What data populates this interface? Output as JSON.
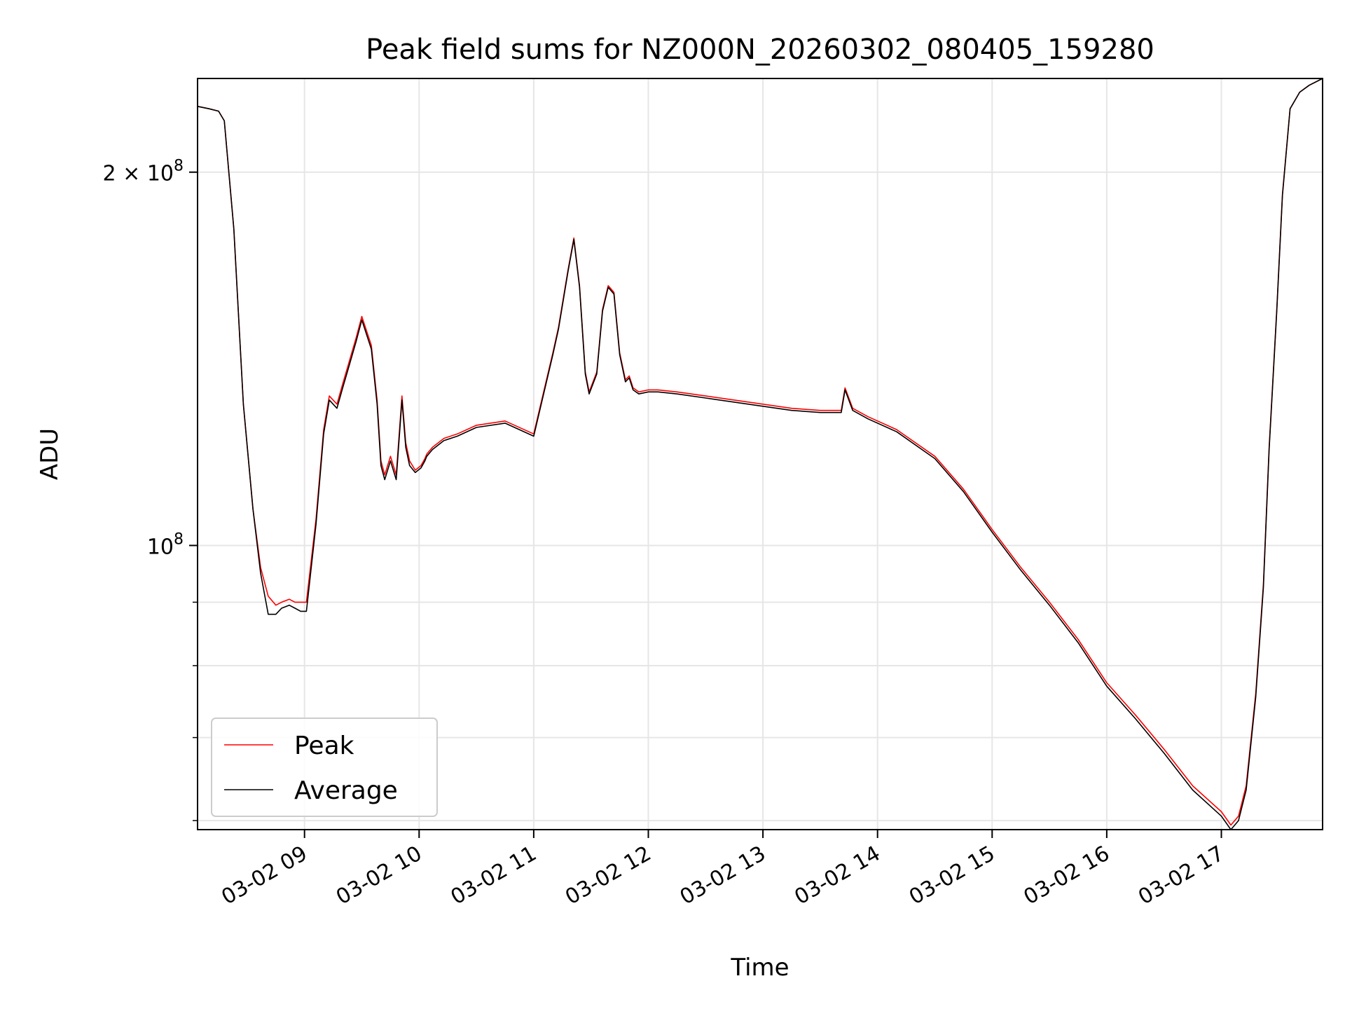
{
  "chart_data": {
    "type": "line",
    "title": "Peak field sums for NZ000N_20260302_080405_159280",
    "xlabel": "Time",
    "ylabel": "ADU",
    "yscale": "log",
    "xlim": [
      "2026-03-02 08:04",
      "2026-03-02 17:53"
    ],
    "ylim": [
      59000000,
      238000000
    ],
    "grid": true,
    "legend_position": "lower-left",
    "x_ticks": [
      {
        "value": "2026-03-02 09:00",
        "label": "03-02 09"
      },
      {
        "value": "2026-03-02 10:00",
        "label": "03-02 10"
      },
      {
        "value": "2026-03-02 11:00",
        "label": "03-02 11"
      },
      {
        "value": "2026-03-02 12:00",
        "label": "03-02 12"
      },
      {
        "value": "2026-03-02 13:00",
        "label": "03-02 13"
      },
      {
        "value": "2026-03-02 14:00",
        "label": "03-02 14"
      },
      {
        "value": "2026-03-02 15:00",
        "label": "03-02 15"
      },
      {
        "value": "2026-03-02 16:00",
        "label": "03-02 16"
      },
      {
        "value": "2026-03-02 17:00",
        "label": "03-02 17"
      }
    ],
    "y_major_ticks": [
      {
        "value": 100000000,
        "base": "10",
        "exp": "8",
        "mantissa": ""
      },
      {
        "value": 200000000,
        "base": "10",
        "exp": "8",
        "mantissa": "2 × "
      }
    ],
    "y_minor_ticks": [
      60000000,
      70000000,
      80000000,
      90000000
    ],
    "x": [
      "2026-03-02 08:04",
      "2026-03-02 08:10",
      "2026-03-02 08:15",
      "2026-03-02 08:18",
      "2026-03-02 08:23",
      "2026-03-02 08:28",
      "2026-03-02 08:33",
      "2026-03-02 08:37",
      "2026-03-02 08:41",
      "2026-03-02 08:45",
      "2026-03-02 08:48",
      "2026-03-02 08:52",
      "2026-03-02 08:55",
      "2026-03-02 08:58",
      "2026-03-02 09:01",
      "2026-03-02 09:06",
      "2026-03-02 09:10",
      "2026-03-02 09:13",
      "2026-03-02 09:17",
      "2026-03-02 09:20",
      "2026-03-02 09:23",
      "2026-03-02 09:27",
      "2026-03-02 09:30",
      "2026-03-02 09:35",
      "2026-03-02 09:38",
      "2026-03-02 09:40",
      "2026-03-02 09:42",
      "2026-03-02 09:45",
      "2026-03-02 09:48",
      "2026-03-02 09:51",
      "2026-03-02 09:53",
      "2026-03-02 09:55",
      "2026-03-02 09:58",
      "2026-03-02 10:01",
      "2026-03-02 10:03",
      "2026-03-02 10:04",
      "2026-03-02 10:07",
      "2026-03-02 10:13",
      "2026-03-02 10:20",
      "2026-03-02 10:30",
      "2026-03-02 10:45",
      "2026-03-02 11:00",
      "2026-03-02 11:10",
      "2026-03-02 11:13",
      "2026-03-02 11:18",
      "2026-03-02 11:21",
      "2026-03-02 11:24",
      "2026-03-02 11:27",
      "2026-03-02 11:29",
      "2026-03-02 11:33",
      "2026-03-02 11:36",
      "2026-03-02 11:39",
      "2026-03-02 11:42",
      "2026-03-02 11:45",
      "2026-03-02 11:48",
      "2026-03-02 11:50",
      "2026-03-02 11:52",
      "2026-03-02 11:55",
      "2026-03-02 12:00",
      "2026-03-02 12:05",
      "2026-03-02 12:15",
      "2026-03-02 12:30",
      "2026-03-02 12:45",
      "2026-03-02 13:00",
      "2026-03-02 13:15",
      "2026-03-02 13:30",
      "2026-03-02 13:41",
      "2026-03-02 13:43",
      "2026-03-02 13:47",
      "2026-03-02 13:55",
      "2026-03-02 14:10",
      "2026-03-02 14:30",
      "2026-03-02 14:45",
      "2026-03-02 15:00",
      "2026-03-02 15:15",
      "2026-03-02 15:30",
      "2026-03-02 15:45",
      "2026-03-02 16:00",
      "2026-03-02 16:15",
      "2026-03-02 16:30",
      "2026-03-02 16:45",
      "2026-03-02 17:00",
      "2026-03-02 17:05",
      "2026-03-02 17:09",
      "2026-03-02 17:13",
      "2026-03-02 17:18",
      "2026-03-02 17:22",
      "2026-03-02 17:25",
      "2026-03-02 17:29",
      "2026-03-02 17:32",
      "2026-03-02 17:36",
      "2026-03-02 17:41",
      "2026-03-02 17:46",
      "2026-03-02 17:53"
    ],
    "series": [
      {
        "name": "Peak",
        "color": "#ff0000",
        "values": [
          226000000,
          225000000,
          224000000,
          220000000,
          180000000,
          130000000,
          107000000,
          96000000,
          91000000,
          89500000,
          90000000,
          90500000,
          90000000,
          90000000,
          90000000,
          105000000,
          124000000,
          132000000,
          130000000,
          135000000,
          140000000,
          147000000,
          153000000,
          145000000,
          131000000,
          117000000,
          114000000,
          118000000,
          114000000,
          132000000,
          121000000,
          117000000,
          115000000,
          116000000,
          117500000,
          118500000,
          120000000,
          122000000,
          123000000,
          125000000,
          126000000,
          123000000,
          143000000,
          150000000,
          167000000,
          177000000,
          162000000,
          138000000,
          133000000,
          138000000,
          155000000,
          162000000,
          160000000,
          143000000,
          136000000,
          137000000,
          134000000,
          133000000,
          133500000,
          133500000,
          133000000,
          132000000,
          131000000,
          130000000,
          129000000,
          128500000,
          128500000,
          134000000,
          129000000,
          127000000,
          124000000,
          118000000,
          111000000,
          103000000,
          96000000,
          90000000,
          84000000,
          77500000,
          73000000,
          68500000,
          64000000,
          61000000,
          59500000,
          60500000,
          64000000,
          76000000,
          93000000,
          120000000,
          155000000,
          192000000,
          225000000,
          232000000,
          235000000,
          238000000
        ]
      },
      {
        "name": "Average",
        "color": "#000000",
        "values": [
          226000000,
          225000000,
          224000000,
          220000000,
          180000000,
          130000000,
          107000000,
          95000000,
          88000000,
          88000000,
          89000000,
          89500000,
          89000000,
          88500000,
          88500000,
          104000000,
          123000000,
          131000000,
          129000000,
          134000000,
          139000000,
          146000000,
          152000000,
          144000000,
          130000000,
          116000000,
          113000000,
          117000000,
          113000000,
          131000000,
          120000000,
          116000000,
          114500000,
          115500000,
          117000000,
          118000000,
          119500000,
          121500000,
          122500000,
          124500000,
          125500000,
          122500000,
          142500000,
          149500000,
          166500000,
          176500000,
          161500000,
          137500000,
          132500000,
          137500000,
          154500000,
          161500000,
          159500000,
          142500000,
          135500000,
          136500000,
          133500000,
          132500000,
          133000000,
          133000000,
          132500000,
          131500000,
          130500000,
          129500000,
          128500000,
          128000000,
          128000000,
          133500000,
          128500000,
          126500000,
          123500000,
          117500000,
          110500000,
          102500000,
          95500000,
          89500000,
          83500000,
          77000000,
          72500000,
          68000000,
          63500000,
          60500000,
          59000000,
          60000000,
          63500000,
          75500000,
          92500000,
          119500000,
          154500000,
          191500000,
          225000000,
          232000000,
          235000000,
          238000000
        ]
      }
    ]
  }
}
